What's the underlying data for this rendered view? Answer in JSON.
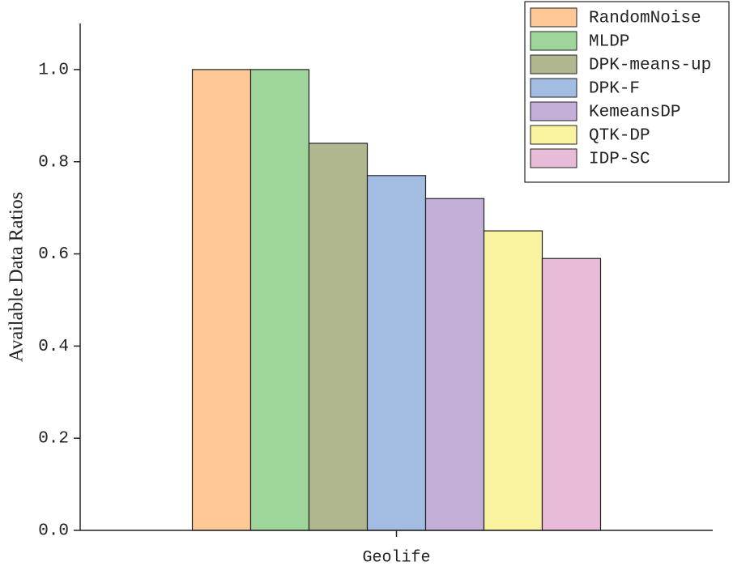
{
  "chart_data": {
    "type": "bar",
    "y_label": "Available Data Ratios",
    "categories": [
      "Geolife"
    ],
    "series": [
      {
        "name": "RandomNoise",
        "color": "#fdc896",
        "values": [
          1.0
        ]
      },
      {
        "name": "MLDP",
        "color": "#9ed59b",
        "values": [
          1.0
        ]
      },
      {
        "name": "DPK-means-up",
        "color": "#b0b78f",
        "values": [
          0.84
        ]
      },
      {
        "name": "DPK-F",
        "color": "#a2bce2",
        "values": [
          0.77
        ]
      },
      {
        "name": "KemeansDP",
        "color": "#c3afd8",
        "values": [
          0.72
        ]
      },
      {
        "name": "QTK-DP",
        "color": "#f9f3a0",
        "values": [
          0.65
        ]
      },
      {
        "name": "IDP-SC",
        "color": "#e8bcd8",
        "values": [
          0.59
        ]
      }
    ],
    "ylim": [
      0,
      1.1
    ],
    "yticks": [
      {
        "value": 0,
        "label": "0.0"
      },
      0.2,
      0.4,
      0.6,
      0.8,
      {
        "value": 1,
        "label": "1.0"
      }
    ],
    "legend": "top-right"
  }
}
